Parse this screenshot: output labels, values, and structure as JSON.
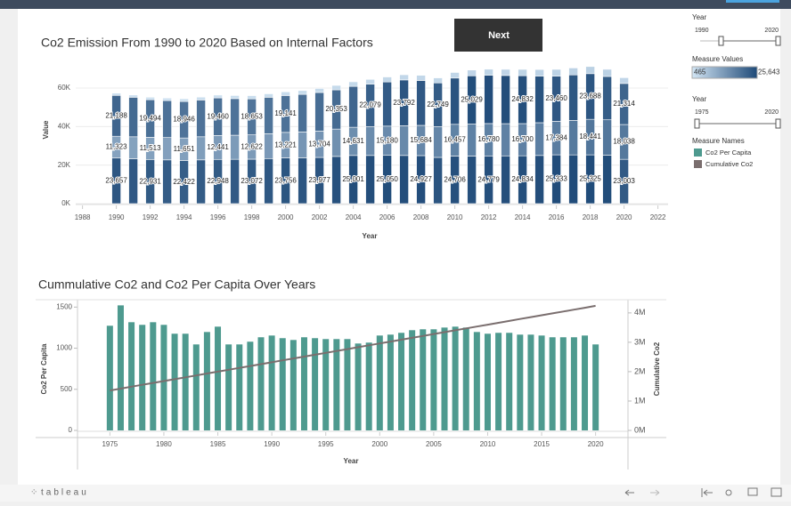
{
  "chart_data": [
    {
      "type": "bar",
      "stacked": true,
      "title": "Co2 Emission From 1990 to 2020 Based on Internal Factors",
      "xlabel": "Year",
      "ylabel": "Value",
      "x": [
        1990,
        1991,
        1992,
        1993,
        1994,
        1995,
        1996,
        1997,
        1998,
        1999,
        2000,
        2001,
        2002,
        2003,
        2004,
        2005,
        2006,
        2007,
        2008,
        2009,
        2010,
        2011,
        2012,
        2013,
        2014,
        2015,
        2016,
        2017,
        2018,
        2019,
        2020
      ],
      "series": [
        {
          "values": [
            23657,
            23300,
            22931,
            22700,
            22422,
            22700,
            22948,
            23000,
            23072,
            23400,
            23756,
            23800,
            23977,
            24500,
            25001,
            25000,
            25050,
            25000,
            24927,
            24000,
            24706,
            24700,
            24779,
            24800,
            24834,
            25000,
            25333,
            25300,
            25325,
            25200,
            23003
          ],
          "value_labels": [
            "23,657",
            null,
            "22,931",
            null,
            "22,422",
            null,
            "22,948",
            null,
            "23,072",
            null,
            "23,756",
            null,
            "23,977",
            null,
            "25,001",
            null,
            "25,050",
            null,
            "24,927",
            null,
            "24,706",
            null,
            "24,779",
            null,
            "24,834",
            null,
            "25,333",
            null,
            "25,325",
            null,
            "23,003"
          ]
        },
        {
          "values": [
            11323,
            11400,
            11513,
            11600,
            11651,
            12000,
            12441,
            12500,
            12622,
            12900,
            13221,
            13400,
            13704,
            14200,
            14631,
            14900,
            15180,
            15400,
            15684,
            15900,
            16457,
            16600,
            16780,
            16700,
            16700,
            17000,
            17384,
            17900,
            18441,
            18300,
            18038
          ],
          "value_labels": [
            "11,323",
            null,
            "11,513",
            null,
            "11,651",
            null,
            "12,441",
            null,
            "12,622",
            null,
            "13,221",
            null,
            "13,704",
            null,
            "14,631",
            null,
            "15,180",
            null,
            "15,684",
            null,
            "16,457",
            null,
            "16,780",
            null,
            "16,700",
            null,
            "17,384",
            null,
            "18,441",
            null,
            "18,038"
          ]
        },
        {
          "values": [
            21188,
            20500,
            19494,
            19200,
            18946,
            19100,
            19460,
            19000,
            18653,
            18900,
            19141,
            19500,
            20000,
            20353,
            21200,
            22079,
            22900,
            23792,
            23300,
            22749,
            24000,
            25029,
            25100,
            25000,
            24832,
            24200,
            23460,
            23600,
            23688,
            22500,
            21314
          ],
          "value_labels": [
            "21,188",
            null,
            "19,494",
            null,
            "18,946",
            null,
            "19,460",
            null,
            "18,653",
            null,
            "19,141",
            null,
            null,
            "20,353",
            null,
            "22,079",
            null,
            "23,792",
            null,
            "22,749",
            null,
            "25,029",
            null,
            null,
            "24,832",
            null,
            "23,460",
            null,
            "23,688",
            null,
            "21,314"
          ]
        },
        {
          "values": [
            1200,
            1200,
            1300,
            1300,
            1400,
            1500,
            1500,
            1600,
            1700,
            1800,
            1900,
            2000,
            2100,
            2300,
            2400,
            2500,
            2600,
            2700,
            2700,
            2600,
            2900,
            3000,
            3100,
            3200,
            3300,
            3400,
            3500,
            3600,
            3700,
            3700,
            3000
          ]
        }
      ],
      "color_scale": {
        "title": "Measure Values",
        "range": [
          465,
          {
            "value": 25643,
            "label": "25,643"
          }
        ],
        "colors": [
          "#d2e5f4",
          "#1f4a78"
        ]
      },
      "xlim": [
        1987.6,
        2022.6
      ],
      "xticks": [
        1988,
        1990,
        1992,
        1994,
        1996,
        1998,
        2000,
        2002,
        2004,
        2006,
        2008,
        2010,
        2012,
        2014,
        2016,
        2018,
        2020,
        2022
      ],
      "ylim": [
        0,
        76600
      ],
      "yticks": [
        {
          "value": 0,
          "label": "0K"
        },
        {
          "value": 20000,
          "label": "20K"
        },
        {
          "value": 40000,
          "label": "40K"
        },
        {
          "value": 60000,
          "label": "60K"
        }
      ],
      "grid": true
    },
    {
      "type": "combo",
      "title": "Cummulative Co2 and Co2 Per Capita Over Years",
      "xlabel": "Year",
      "ylabel": "Co2 Per Capita",
      "y2label": "Cumulative Co2",
      "legend_title": "Measure Names",
      "legend": "right",
      "x": [
        1975,
        1976,
        1977,
        1978,
        1979,
        1980,
        1981,
        1982,
        1983,
        1984,
        1985,
        1986,
        1987,
        1988,
        1989,
        1990,
        1991,
        1992,
        1993,
        1994,
        1995,
        1996,
        1997,
        1998,
        1999,
        2000,
        2001,
        2002,
        2003,
        2004,
        2005,
        2006,
        2007,
        2008,
        2009,
        2010,
        2011,
        2012,
        2013,
        2014,
        2015,
        2016,
        2017,
        2018,
        2019,
        2020
      ],
      "series": [
        {
          "name": "Co2 Per Capita",
          "type": "bar",
          "color": "#4e9a8f",
          "values": [
            1273,
            1521,
            1316,
            1284,
            1316,
            1284,
            1176,
            1176,
            1046,
            1197,
            1262,
            1046,
            1046,
            1079,
            1133,
            1154,
            1122,
            1100,
            1133,
            1122,
            1111,
            1111,
            1111,
            1057,
            1068,
            1154,
            1165,
            1187,
            1219,
            1230,
            1230,
            1251,
            1262,
            1251,
            1197,
            1176,
            1187,
            1187,
            1165,
            1165,
            1154,
            1133,
            1133,
            1133,
            1154,
            1046
          ]
        },
        {
          "name": "Cumulative Co2",
          "type": "line",
          "axis": "y2",
          "color": "#7a6e6e",
          "values": [
            1360000,
            1424000,
            1488000,
            1552000,
            1616000,
            1680000,
            1744000,
            1808000,
            1872000,
            1936000,
            2000000,
            2064000,
            2128000,
            2192000,
            2256000,
            2320000,
            2384000,
            2448000,
            2512000,
            2576000,
            2640000,
            2704000,
            2768000,
            2832000,
            2896000,
            2960000,
            3024000,
            3088000,
            3152000,
            3216000,
            3280000,
            3344000,
            3408000,
            3472000,
            3536000,
            3600000,
            3664000,
            3728000,
            3792000,
            3856000,
            3920000,
            3984000,
            4048000,
            4112000,
            4176000,
            4240000
          ]
        }
      ],
      "xlim": [
        1972,
        2023
      ],
      "xticks": [
        1975,
        1980,
        1985,
        1990,
        1995,
        2000,
        2005,
        2010,
        2015,
        2020
      ],
      "ylim": [
        0,
        1590
      ],
      "yticks": [
        0,
        500,
        1000,
        1500
      ],
      "y2lim": [
        0,
        4450000
      ],
      "y2ticks": [
        {
          "value": 0,
          "label": "0M"
        },
        {
          "value": 1000000,
          "label": "1M"
        },
        {
          "value": 2000000,
          "label": "2M"
        },
        {
          "value": 3000000,
          "label": "3M"
        },
        {
          "value": 4000000,
          "label": "4M"
        }
      ]
    }
  ],
  "controls": {
    "button": "Next",
    "filters": [
      {
        "title": "Year",
        "range": [
          1990,
          2020
        ]
      },
      {
        "title": "Year",
        "range": [
          1975,
          2020
        ]
      }
    ],
    "brand": "tableau"
  }
}
